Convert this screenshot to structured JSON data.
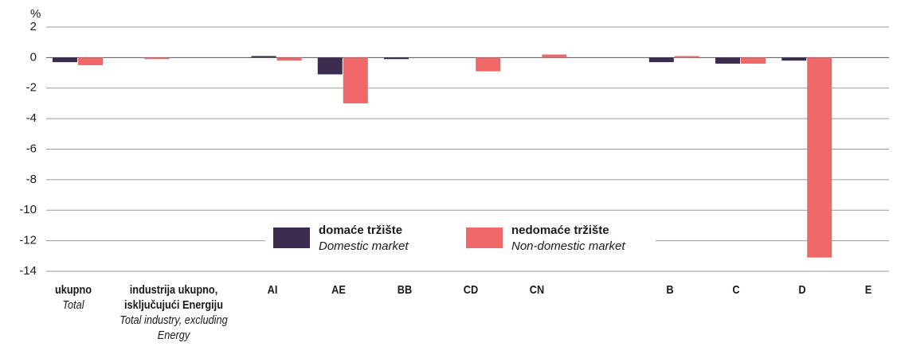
{
  "chart_data": {
    "type": "bar",
    "y_axis_label": "%",
    "categories": [
      "ukupno",
      "industrija ukupno, isključujući Energiju",
      null,
      "AI",
      "AE",
      "BB",
      "CD",
      "CN",
      null,
      "B",
      "C",
      "D",
      "E"
    ],
    "categories_en": [
      "Total",
      "Total industry, excluding Energy",
      null,
      null,
      null,
      null,
      null,
      null,
      null,
      null,
      null,
      null,
      null
    ],
    "series": [
      {
        "name": "domaće tržište",
        "name_en": "Domestic market",
        "color": "#3b2c50",
        "values": [
          -0.3,
          0.0,
          null,
          0.1,
          -1.1,
          -0.1,
          0.0,
          0.0,
          null,
          -0.3,
          -0.4,
          -0.2,
          0.0
        ]
      },
      {
        "name": "nedomaće tržište",
        "name_en": "Non-domestic market",
        "color": "#ef6767",
        "values": [
          -0.5,
          -0.1,
          null,
          -0.2,
          -3.0,
          0.0,
          -0.9,
          0.2,
          null,
          0.1,
          -0.4,
          -13.1,
          0.0
        ]
      }
    ],
    "ylim": [
      -14,
      2
    ],
    "yticks": [
      -14,
      -12,
      -10,
      -8,
      -6,
      -4,
      -2,
      0,
      2
    ],
    "grid": true
  }
}
